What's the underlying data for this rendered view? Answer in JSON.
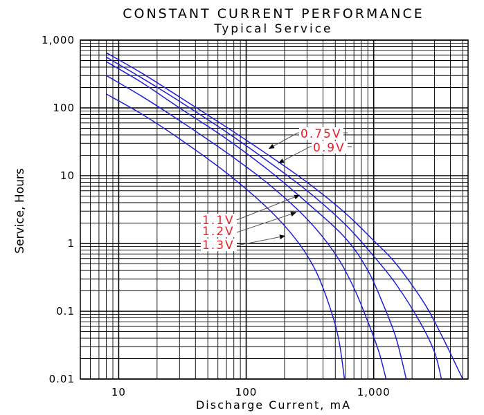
{
  "chart_data": {
    "type": "line",
    "title": "CONSTANT CURRENT PERFORMANCE",
    "subtitle": "Typical Service",
    "xlabel": "Discharge Current, mA",
    "ylabel": "Service, Hours",
    "x_scale": "log",
    "y_scale": "log",
    "xlim": [
      5,
      5500
    ],
    "ylim": [
      0.01,
      1000
    ],
    "x_ticks": [
      {
        "value": 10,
        "label": "10"
      },
      {
        "value": 100,
        "label": "100"
      },
      {
        "value": 1000,
        "label": "1,000"
      }
    ],
    "y_ticks": [
      {
        "value": 0.01,
        "label": "0.01"
      },
      {
        "value": 0.1,
        "label": "0.1"
      },
      {
        "value": 1,
        "label": "1"
      },
      {
        "value": 10,
        "label": "10"
      },
      {
        "value": 100,
        "label": "100"
      },
      {
        "value": 1000,
        "label": "1,000"
      }
    ],
    "grid": true,
    "line_color": "#1f1fd6",
    "label_color": "#e8202a",
    "series": [
      {
        "name": "0.75V",
        "points": [
          [
            8,
            650
          ],
          [
            15,
            330
          ],
          [
            30,
            145
          ],
          [
            70,
            52
          ],
          [
            150,
            20
          ],
          [
            300,
            8
          ],
          [
            600,
            2.8
          ],
          [
            1000,
            1.1
          ],
          [
            1500,
            0.5
          ],
          [
            2500,
            0.13
          ],
          [
            3500,
            0.04
          ],
          [
            4500,
            0.015
          ],
          [
            5000,
            0.01
          ]
        ]
      },
      {
        "name": "0.9V",
        "points": [
          [
            8,
            560
          ],
          [
            15,
            280
          ],
          [
            30,
            125
          ],
          [
            70,
            44
          ],
          [
            150,
            16
          ],
          [
            300,
            6
          ],
          [
            600,
            1.9
          ],
          [
            1000,
            0.65
          ],
          [
            1500,
            0.25
          ],
          [
            2300,
            0.07
          ],
          [
            3000,
            0.025
          ],
          [
            3400,
            0.01
          ]
        ]
      },
      {
        "name": "1.1V",
        "points": [
          [
            8,
            480
          ],
          [
            15,
            240
          ],
          [
            30,
            100
          ],
          [
            70,
            35
          ],
          [
            150,
            12
          ],
          [
            300,
            4
          ],
          [
            600,
            1.2
          ],
          [
            900,
            0.4
          ],
          [
            1200,
            0.12
          ],
          [
            1500,
            0.04
          ],
          [
            1800,
            0.01
          ]
        ]
      },
      {
        "name": "1.2V",
        "points": [
          [
            8,
            300
          ],
          [
            15,
            150
          ],
          [
            30,
            65
          ],
          [
            70,
            22
          ],
          [
            150,
            7.5
          ],
          [
            300,
            2.3
          ],
          [
            500,
            0.7
          ],
          [
            700,
            0.22
          ],
          [
            900,
            0.07
          ],
          [
            1100,
            0.025
          ],
          [
            1250,
            0.01
          ]
        ]
      },
      {
        "name": "1.3V",
        "points": [
          [
            8,
            160
          ],
          [
            15,
            82
          ],
          [
            30,
            35
          ],
          [
            70,
            11
          ],
          [
            150,
            3.2
          ],
          [
            250,
            1.1
          ],
          [
            350,
            0.4
          ],
          [
            450,
            0.12
          ],
          [
            530,
            0.04
          ],
          [
            590,
            0.01
          ]
        ]
      }
    ],
    "annotations": [
      {
        "text": "0.75V",
        "series": "0.75V"
      },
      {
        "text": "0.9V",
        "series": "0.9V"
      },
      {
        "text": "1.1V",
        "series": "1.1V"
      },
      {
        "text": "1.2V",
        "series": "1.2V"
      },
      {
        "text": "1.3V",
        "series": "1.3V"
      }
    ]
  }
}
